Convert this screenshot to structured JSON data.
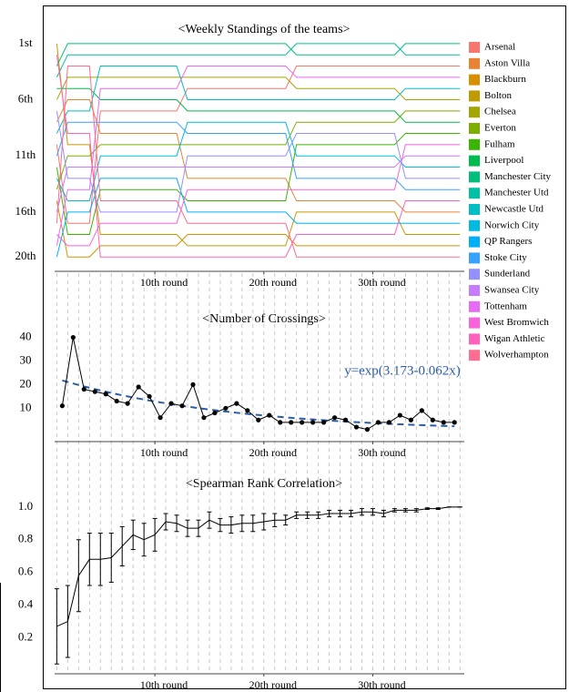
{
  "chart_data": [
    {
      "type": "bump",
      "title": "<Weekly Standings of the teams>",
      "x": [
        1,
        2,
        3,
        4,
        5,
        6,
        7,
        8,
        9,
        10,
        11,
        12,
        13,
        14,
        15,
        16,
        17,
        18,
        19,
        20,
        21,
        22,
        23,
        24,
        25,
        26,
        27,
        28,
        29,
        30,
        31,
        32,
        33,
        34,
        35,
        36,
        37,
        38
      ],
      "xlim": [
        0.8,
        38.4
      ],
      "xticks": [
        {
          "value": 10,
          "label": "10th round"
        },
        {
          "value": 20,
          "label": "20th round"
        },
        {
          "value": 30,
          "label": "30th round"
        }
      ],
      "ylim": [
        0.2,
        21.2
      ],
      "y_reversed": true,
      "yticks": [
        {
          "value": 1,
          "label": "1st"
        },
        {
          "value": 6,
          "label": "6th"
        },
        {
          "value": 11,
          "label": "11th"
        },
        {
          "value": 16,
          "label": "16th"
        },
        {
          "value": 20,
          "label": "20th"
        }
      ],
      "series": [
        {
          "name": "Arsenal",
          "color": "#F8766D",
          "values": [
            10,
            17,
            17,
            17,
            7,
            7,
            7,
            7,
            7,
            7,
            7,
            7,
            5,
            5,
            5,
            5,
            5,
            5,
            5,
            5,
            5,
            5,
            3,
            3,
            3,
            3,
            3,
            3,
            3,
            3,
            3,
            3,
            3,
            3,
            3,
            3,
            3,
            3
          ]
        },
        {
          "name": "Aston Villa",
          "color": "#EA8331",
          "values": [
            8,
            6,
            6,
            6,
            9,
            9,
            9,
            9,
            9,
            9,
            9,
            9,
            13,
            13,
            13,
            13,
            13,
            13,
            13,
            13,
            13,
            13,
            15,
            15,
            15,
            15,
            15,
            15,
            15,
            15,
            15,
            15,
            16,
            16,
            16,
            16,
            16,
            16
          ]
        },
        {
          "name": "Blackburn",
          "color": "#D89000",
          "values": [
            15,
            20,
            20,
            20,
            19,
            19,
            19,
            19,
            19,
            19,
            19,
            19,
            18,
            18,
            18,
            18,
            18,
            18,
            18,
            18,
            18,
            18,
            19,
            19,
            19,
            19,
            19,
            19,
            19,
            19,
            19,
            19,
            19,
            19,
            19,
            19,
            19,
            19
          ]
        },
        {
          "name": "Bolton",
          "color": "#C09B00",
          "values": [
            1,
            10,
            10,
            10,
            18,
            18,
            18,
            18,
            18,
            18,
            18,
            18,
            19,
            19,
            19,
            19,
            19,
            19,
            19,
            19,
            19,
            19,
            16,
            16,
            16,
            16,
            16,
            16,
            16,
            16,
            16,
            16,
            18,
            18,
            18,
            18,
            18,
            18
          ]
        },
        {
          "name": "Chelsea",
          "color": "#A3A500",
          "values": [
            6,
            4,
            4,
            4,
            4,
            4,
            4,
            4,
            4,
            4,
            4,
            4,
            4,
            4,
            4,
            4,
            4,
            4,
            4,
            4,
            4,
            4,
            5,
            5,
            5,
            5,
            5,
            5,
            5,
            5,
            5,
            5,
            6,
            6,
            6,
            6,
            6,
            6
          ]
        },
        {
          "name": "Everton",
          "color": "#7CAE00",
          "values": [
            14,
            11,
            11,
            11,
            10,
            10,
            10,
            10,
            10,
            10,
            10,
            10,
            10,
            10,
            10,
            10,
            10,
            10,
            10,
            10,
            10,
            10,
            8,
            8,
            8,
            8,
            8,
            8,
            8,
            8,
            8,
            8,
            7,
            7,
            7,
            7,
            7,
            7
          ]
        },
        {
          "name": "Fulham",
          "color": "#39B600",
          "values": [
            12,
            18,
            18,
            18,
            14,
            14,
            14,
            14,
            14,
            14,
            14,
            14,
            15,
            15,
            15,
            15,
            15,
            15,
            15,
            15,
            15,
            15,
            10,
            10,
            10,
            10,
            10,
            10,
            10,
            10,
            10,
            10,
            9,
            9,
            9,
            9,
            9,
            9
          ]
        },
        {
          "name": "Liverpool",
          "color": "#00BB4E",
          "values": [
            5,
            5,
            5,
            5,
            6,
            6,
            6,
            6,
            6,
            6,
            6,
            6,
            7,
            7,
            7,
            7,
            7,
            7,
            7,
            7,
            7,
            7,
            7,
            7,
            7,
            7,
            7,
            7,
            7,
            7,
            7,
            7,
            8,
            8,
            8,
            8,
            8,
            8
          ]
        },
        {
          "name": "Manchester City",
          "color": "#00BF7D",
          "values": [
            3,
            1,
            1,
            1,
            1,
            1,
            1,
            1,
            1,
            1,
            1,
            1,
            1,
            1,
            1,
            1,
            1,
            1,
            1,
            1,
            1,
            1,
            2,
            2,
            2,
            2,
            2,
            2,
            2,
            2,
            2,
            2,
            1,
            1,
            1,
            1,
            1,
            1
          ]
        },
        {
          "name": "Manchester Utd",
          "color": "#00C1A3",
          "values": [
            4,
            2,
            2,
            2,
            2,
            2,
            2,
            2,
            2,
            2,
            2,
            2,
            2,
            2,
            2,
            2,
            2,
            2,
            2,
            2,
            2,
            2,
            1,
            1,
            1,
            1,
            1,
            1,
            1,
            1,
            1,
            1,
            2,
            2,
            2,
            2,
            2,
            2
          ]
        },
        {
          "name": "Newcastle Utd",
          "color": "#00BFC4",
          "values": [
            9,
            7,
            7,
            7,
            3,
            3,
            3,
            3,
            3,
            3,
            3,
            3,
            6,
            6,
            6,
            6,
            6,
            6,
            6,
            6,
            6,
            6,
            6,
            6,
            6,
            6,
            6,
            6,
            6,
            6,
            6,
            6,
            5,
            5,
            5,
            5,
            5,
            5
          ]
        },
        {
          "name": "Norwich City",
          "color": "#00BAE0",
          "values": [
            13,
            15,
            15,
            15,
            11,
            11,
            11,
            11,
            11,
            11,
            11,
            11,
            8,
            8,
            8,
            8,
            8,
            8,
            8,
            8,
            8,
            8,
            11,
            11,
            11,
            11,
            11,
            11,
            11,
            11,
            11,
            11,
            12,
            12,
            12,
            12,
            12,
            12
          ]
        },
        {
          "name": "QP Rangers",
          "color": "#00B0F6",
          "values": [
            20,
            16,
            16,
            16,
            13,
            13,
            13,
            13,
            13,
            13,
            13,
            13,
            16,
            16,
            16,
            16,
            16,
            16,
            16,
            16,
            16,
            16,
            17,
            17,
            17,
            17,
            17,
            17,
            17,
            17,
            17,
            17,
            17,
            17,
            17,
            17,
            17,
            17
          ]
        },
        {
          "name": "Stoke City",
          "color": "#35A2FF",
          "values": [
            11,
            8,
            8,
            8,
            8,
            8,
            8,
            8,
            8,
            8,
            8,
            8,
            9,
            9,
            9,
            9,
            9,
            9,
            9,
            9,
            9,
            9,
            13,
            13,
            13,
            13,
            13,
            13,
            13,
            13,
            13,
            13,
            14,
            14,
            14,
            14,
            14,
            14
          ]
        },
        {
          "name": "Sunderland",
          "color": "#9590FF",
          "values": [
            7,
            13,
            13,
            13,
            16,
            16,
            16,
            16,
            16,
            16,
            16,
            16,
            11,
            11,
            11,
            11,
            11,
            11,
            11,
            11,
            11,
            11,
            9,
            9,
            9,
            9,
            9,
            9,
            9,
            9,
            9,
            9,
            13,
            13,
            13,
            13,
            13,
            13
          ]
        },
        {
          "name": "Swansea City",
          "color": "#C77CFF",
          "values": [
            16,
            12,
            12,
            12,
            12,
            12,
            12,
            12,
            12,
            12,
            12,
            12,
            12,
            12,
            12,
            12,
            12,
            12,
            12,
            12,
            12,
            12,
            12,
            12,
            12,
            12,
            12,
            12,
            12,
            12,
            12,
            12,
            11,
            11,
            11,
            11,
            11,
            11
          ]
        },
        {
          "name": "Tottenham",
          "color": "#E76BF3",
          "values": [
            19,
            14,
            14,
            14,
            5,
            5,
            5,
            5,
            5,
            5,
            5,
            5,
            3,
            3,
            3,
            3,
            3,
            3,
            3,
            3,
            3,
            3,
            4,
            4,
            4,
            4,
            4,
            4,
            4,
            4,
            4,
            4,
            4,
            4,
            4,
            4,
            4,
            4
          ]
        },
        {
          "name": "West Bromwich",
          "color": "#FA62DB",
          "values": [
            18,
            19,
            19,
            19,
            17,
            17,
            17,
            17,
            17,
            17,
            17,
            17,
            14,
            14,
            14,
            14,
            14,
            14,
            14,
            14,
            14,
            14,
            14,
            14,
            14,
            14,
            14,
            14,
            14,
            14,
            14,
            14,
            10,
            10,
            10,
            10,
            10,
            10
          ]
        },
        {
          "name": "Wigan Athletic",
          "color": "#FF62BC",
          "values": [
            2,
            9,
            9,
            9,
            20,
            20,
            20,
            20,
            20,
            20,
            20,
            20,
            20,
            20,
            20,
            20,
            20,
            20,
            20,
            20,
            20,
            20,
            18,
            18,
            18,
            18,
            18,
            18,
            18,
            18,
            18,
            18,
            15,
            15,
            15,
            15,
            15,
            15
          ]
        },
        {
          "name": "Wolverhampton",
          "color": "#FF6C91",
          "values": [
            17,
            3,
            3,
            3,
            15,
            15,
            15,
            15,
            15,
            15,
            15,
            15,
            17,
            17,
            17,
            17,
            17,
            17,
            17,
            17,
            17,
            17,
            20,
            20,
            20,
            20,
            20,
            20,
            20,
            20,
            20,
            20,
            20,
            20,
            20,
            20,
            20,
            20
          ]
        }
      ]
    },
    {
      "type": "line",
      "title": "<Number of Crossings>",
      "x": [
        1.5,
        2.5,
        3.5,
        4.5,
        5.5,
        6.5,
        7.5,
        8.5,
        9.5,
        10.5,
        11.5,
        12.5,
        13.5,
        14.5,
        15.5,
        16.5,
        17.5,
        18.5,
        19.5,
        20.5,
        21.5,
        22.5,
        23.5,
        24.5,
        25.5,
        26.5,
        27.5,
        28.5,
        29.5,
        30.5,
        31.5,
        32.5,
        33.5,
        34.5,
        35.5,
        36.5,
        37.5
      ],
      "values": [
        11,
        40,
        18,
        17,
        16,
        13,
        12,
        19,
        15,
        6,
        12,
        11,
        20,
        6,
        8,
        10,
        12,
        9,
        5,
        7,
        4,
        4,
        4,
        4,
        4,
        6,
        5,
        2,
        1,
        4,
        4,
        7,
        5,
        9,
        5,
        4,
        4
      ],
      "color": "#000000",
      "fit": {
        "label": "y=exp(3.173-0.062x)",
        "intercept": 3.173,
        "slope": -0.062,
        "color": "#2a5caa"
      },
      "xlim": [
        0.8,
        38.4
      ],
      "xticks": [
        {
          "value": 10,
          "label": "10th round"
        },
        {
          "value": 20,
          "label": "20th round"
        },
        {
          "value": 30,
          "label": "30th round"
        }
      ],
      "ylim": [
        -3,
        46
      ],
      "yticks": [
        10,
        20,
        30,
        40
      ]
    },
    {
      "type": "errorbar",
      "title": "<Spearman Rank Correlation>",
      "x": [
        1,
        2,
        3,
        4,
        5,
        6,
        7,
        8,
        9,
        10,
        11,
        12,
        13,
        14,
        15,
        16,
        17,
        18,
        19,
        20,
        21,
        22,
        23,
        24,
        25,
        26,
        27,
        28,
        29,
        30,
        31,
        32,
        33,
        34,
        35,
        36,
        37,
        38
      ],
      "values": [
        0.27,
        0.3,
        0.58,
        0.68,
        0.68,
        0.69,
        0.76,
        0.83,
        0.8,
        0.83,
        0.91,
        0.9,
        0.87,
        0.87,
        0.92,
        0.89,
        0.89,
        0.9,
        0.9,
        0.91,
        0.92,
        0.92,
        0.95,
        0.95,
        0.95,
        0.96,
        0.96,
        0.96,
        0.97,
        0.97,
        0.96,
        0.98,
        0.98,
        0.98,
        0.99,
        0.99,
        1.0,
        1.0
      ],
      "errors": [
        0.23,
        0.22,
        0.22,
        0.16,
        0.16,
        0.15,
        0.12,
        0.09,
        0.1,
        0.1,
        0.05,
        0.05,
        0.05,
        0.05,
        0.05,
        0.04,
        0.05,
        0.05,
        0.05,
        0.05,
        0.04,
        0.03,
        0.02,
        0.02,
        0.02,
        0.02,
        0.02,
        0.02,
        0.02,
        0.02,
        0.02,
        0.01,
        0.01,
        0.01,
        0.005,
        0.005,
        0,
        0
      ],
      "color": "#000000",
      "xlim": [
        0.8,
        38.4
      ],
      "xticks": [
        {
          "value": 10,
          "label": "10th round"
        },
        {
          "value": 20,
          "label": "20th round"
        },
        {
          "value": 30,
          "label": "30th round"
        }
      ],
      "ylim": [
        -0.02,
        1.4
      ],
      "yticks": [
        0.2,
        0.4,
        0.6,
        0.8,
        {
          "value": 1.0,
          "label": "1.0"
        }
      ]
    }
  ]
}
